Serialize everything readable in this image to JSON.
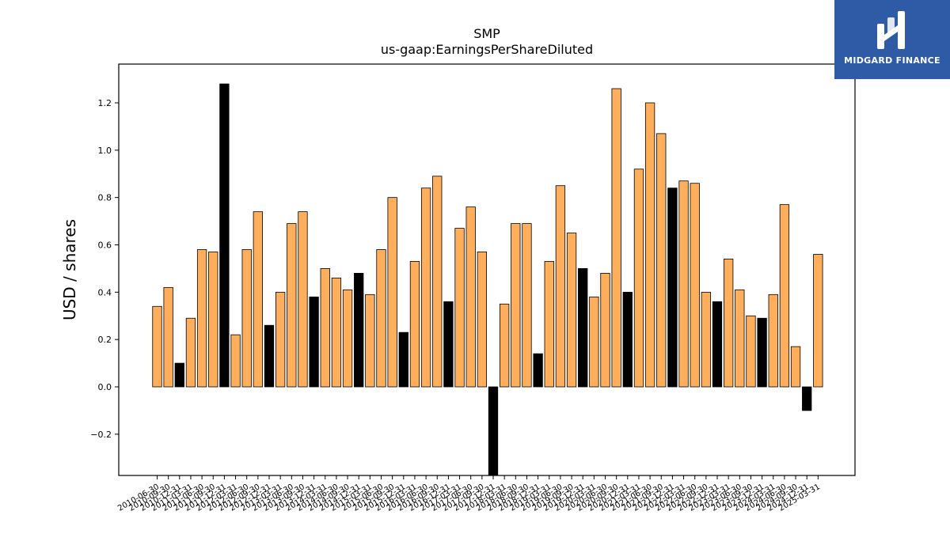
{
  "brand": {
    "name": "MIDGARD FINANCE",
    "bg_color": "#2f5aa6"
  },
  "chart_data": {
    "type": "bar",
    "title": "SMP",
    "subtitle": "us-gaap:EarningsPerShareDiluted",
    "ylabel": "USD / shares",
    "xlabel": "",
    "ylim": [
      -0.37,
      1.36
    ],
    "yticks": [
      -0.2,
      0.0,
      0.2,
      0.4,
      0.6,
      0.8,
      1.0,
      1.2
    ],
    "ytick_labels": [
      "−0.2",
      "0.0",
      "0.2",
      "0.4",
      "0.6",
      "0.8",
      "1.0",
      "1.2"
    ],
    "grid": false,
    "colors": {
      "quarterly": "#ffae5c",
      "derived": "#000000"
    },
    "categories": [
      "2010-06-30",
      "2010-09-30",
      "2010-12-31",
      "2011-03-31",
      "2011-06-30",
      "2011-09-30",
      "2011-12-31",
      "2012-03-31",
      "2012-06-30",
      "2012-09-30",
      "2012-12-31",
      "2013-03-31",
      "2013-06-30",
      "2013-09-30",
      "2013-12-31",
      "2014-03-31",
      "2014-06-30",
      "2014-09-30",
      "2014-12-31",
      "2015-03-31",
      "2015-06-30",
      "2015-09-30",
      "2015-12-31",
      "2016-03-31",
      "2016-06-30",
      "2016-09-30",
      "2016-12-31",
      "2017-03-31",
      "2017-06-30",
      "2017-09-30",
      "2017-12-31",
      "2018-03-31",
      "2018-06-30",
      "2018-09-30",
      "2018-12-31",
      "2019-03-31",
      "2019-06-30",
      "2019-09-30",
      "2019-12-31",
      "2020-03-31",
      "2020-06-30",
      "2020-09-30",
      "2020-12-31",
      "2021-03-31",
      "2021-06-30",
      "2021-09-30",
      "2021-12-31",
      "2022-03-31",
      "2022-06-30",
      "2022-09-30",
      "2022-12-31",
      "2023-03-31",
      "2023-06-30",
      "2023-09-30",
      "2023-12-31",
      "2024-03-31",
      "2024-06-30",
      "2024-09-30",
      "2024-12-31",
      "2025-03-31"
    ],
    "values": [
      0.34,
      0.42,
      0.1,
      0.29,
      0.58,
      0.57,
      1.28,
      0.22,
      0.58,
      0.74,
      0.26,
      0.4,
      0.69,
      0.74,
      0.38,
      0.5,
      0.46,
      0.41,
      0.48,
      0.39,
      0.58,
      0.8,
      0.23,
      0.53,
      0.84,
      0.89,
      0.36,
      0.67,
      0.76,
      0.57,
      -0.4,
      0.35,
      0.69,
      0.69,
      0.14,
      0.53,
      0.85,
      0.65,
      0.5,
      0.38,
      0.48,
      1.26,
      0.4,
      0.92,
      1.2,
      1.07,
      0.84,
      0.87,
      0.86,
      0.4,
      0.36,
      0.54,
      0.41,
      0.3,
      0.29,
      0.39,
      0.77,
      0.17,
      -0.1,
      0.56
    ],
    "derived": [
      false,
      false,
      true,
      false,
      false,
      false,
      true,
      false,
      false,
      false,
      true,
      false,
      false,
      false,
      true,
      false,
      false,
      false,
      true,
      false,
      false,
      false,
      true,
      false,
      false,
      false,
      true,
      false,
      false,
      false,
      true,
      false,
      false,
      false,
      true,
      false,
      false,
      false,
      true,
      false,
      false,
      false,
      true,
      false,
      false,
      false,
      true,
      false,
      false,
      false,
      true,
      false,
      false,
      false,
      true,
      false,
      false,
      false,
      true,
      false
    ]
  }
}
